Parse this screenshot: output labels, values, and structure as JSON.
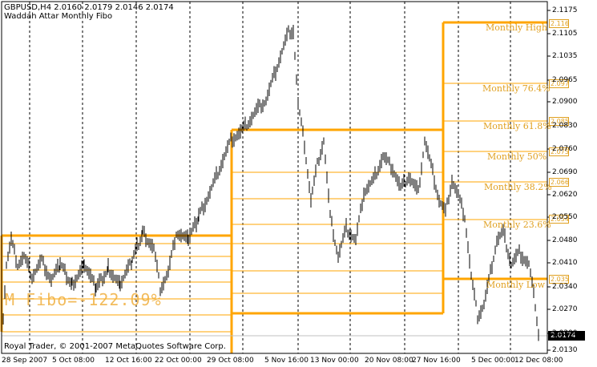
{
  "header": {
    "symbol_line": "GBPUSD,H4  2.0160 2.0179 2.0146 2.0174",
    "indicator_name": "Waddah Attar Monthly Fibo"
  },
  "footer": {
    "copyright": "Royal Trader, © 2001-2007 MetaQuotes Software Corp."
  },
  "fibo_overlay": "M Fibo=-122.09%",
  "current_price": "2.0174",
  "colors": {
    "level_line": "#ffa500",
    "level_text": "#e0a020",
    "candles": "#000000",
    "grid": "#000000",
    "current_tag_bg": "#000000"
  },
  "levels": [
    {
      "name": "monthly-high",
      "label": "Monthly High",
      "tag": "2.116"
    },
    {
      "name": "monthly-76",
      "label": "Monthly 76.4%",
      "tag": "2.097"
    },
    {
      "name": "monthly-61",
      "label": "Monthly 61.8%",
      "tag": "2.085"
    },
    {
      "name": "monthly-50",
      "label": "Monthly 50%",
      "tag": "2.075"
    },
    {
      "name": "monthly-38",
      "label": "Monthly 38.2%",
      "tag": "2.066"
    },
    {
      "name": "monthly-23",
      "label": "Monthly 23.6%",
      "tag": "2.054"
    },
    {
      "name": "monthly-low",
      "label": "Monthly Low",
      "tag": "2.035"
    }
  ],
  "y_axis": [
    "2.1175",
    "2.1105",
    "2.1035",
    "2.0965",
    "2.0900",
    "2.0830",
    "2.0760",
    "2.0690",
    "2.0620",
    "2.0550",
    "2.0480",
    "2.0410",
    "2.0340",
    "2.0270",
    "2.0200",
    "2.0130"
  ],
  "x_axis": [
    "28 Sep 2007",
    "5 Oct 08:00",
    "12 Oct 16:00",
    "22 Oct 00:00",
    "29 Oct 08:00",
    "5 Nov 16:00",
    "13 Nov 00:00",
    "20 Nov 08:00",
    "27 Nov 16:00",
    "5 Dec 00:00",
    "12 Dec 08:00"
  ]
}
